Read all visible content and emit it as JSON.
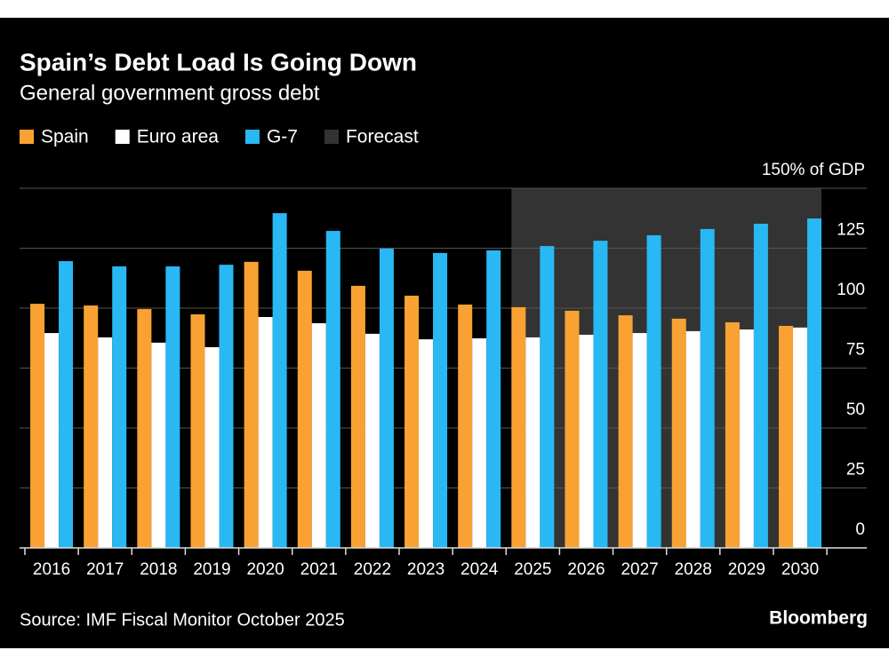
{
  "chart_data": {
    "type": "bar",
    "title": "Spain’s Debt Load Is Going Down",
    "subtitle": "General government gross debt",
    "source": "Source: IMF Fiscal Monitor October 2025",
    "brand": "Bloomberg",
    "categories": [
      "2016",
      "2017",
      "2018",
      "2019",
      "2020",
      "2021",
      "2022",
      "2023",
      "2024",
      "2025",
      "2026",
      "2027",
      "2028",
      "2029",
      "2030"
    ],
    "series": [
      {
        "name": "Spain",
        "color": "#f9a233",
        "values": [
          101.8,
          101.1,
          99.6,
          97.4,
          119.3,
          115.6,
          109.3,
          105.2,
          101.5,
          100.4,
          98.9,
          97.0,
          95.6,
          94.1,
          92.6
        ]
      },
      {
        "name": "Euro area",
        "color": "#ffffff",
        "values": [
          89.6,
          87.8,
          85.6,
          83.7,
          96.3,
          93.7,
          89.3,
          87.0,
          87.4,
          87.8,
          88.9,
          89.6,
          90.4,
          91.1,
          91.9
        ]
      },
      {
        "name": "G-7",
        "color": "#29b8f4",
        "values": [
          119.6,
          117.4,
          117.4,
          118.1,
          139.6,
          132.2,
          124.8,
          123.0,
          124.1,
          125.9,
          128.1,
          130.4,
          133.0,
          135.2,
          137.4
        ]
      }
    ],
    "forecast": {
      "name": "Forecast",
      "color": "#333333",
      "start": "2025"
    },
    "ylim": [
      0,
      150
    ],
    "yticks": [
      0,
      25,
      50,
      75,
      100,
      125,
      {
        "value": 150,
        "label": "150% of GDP"
      }
    ],
    "grid": true
  }
}
